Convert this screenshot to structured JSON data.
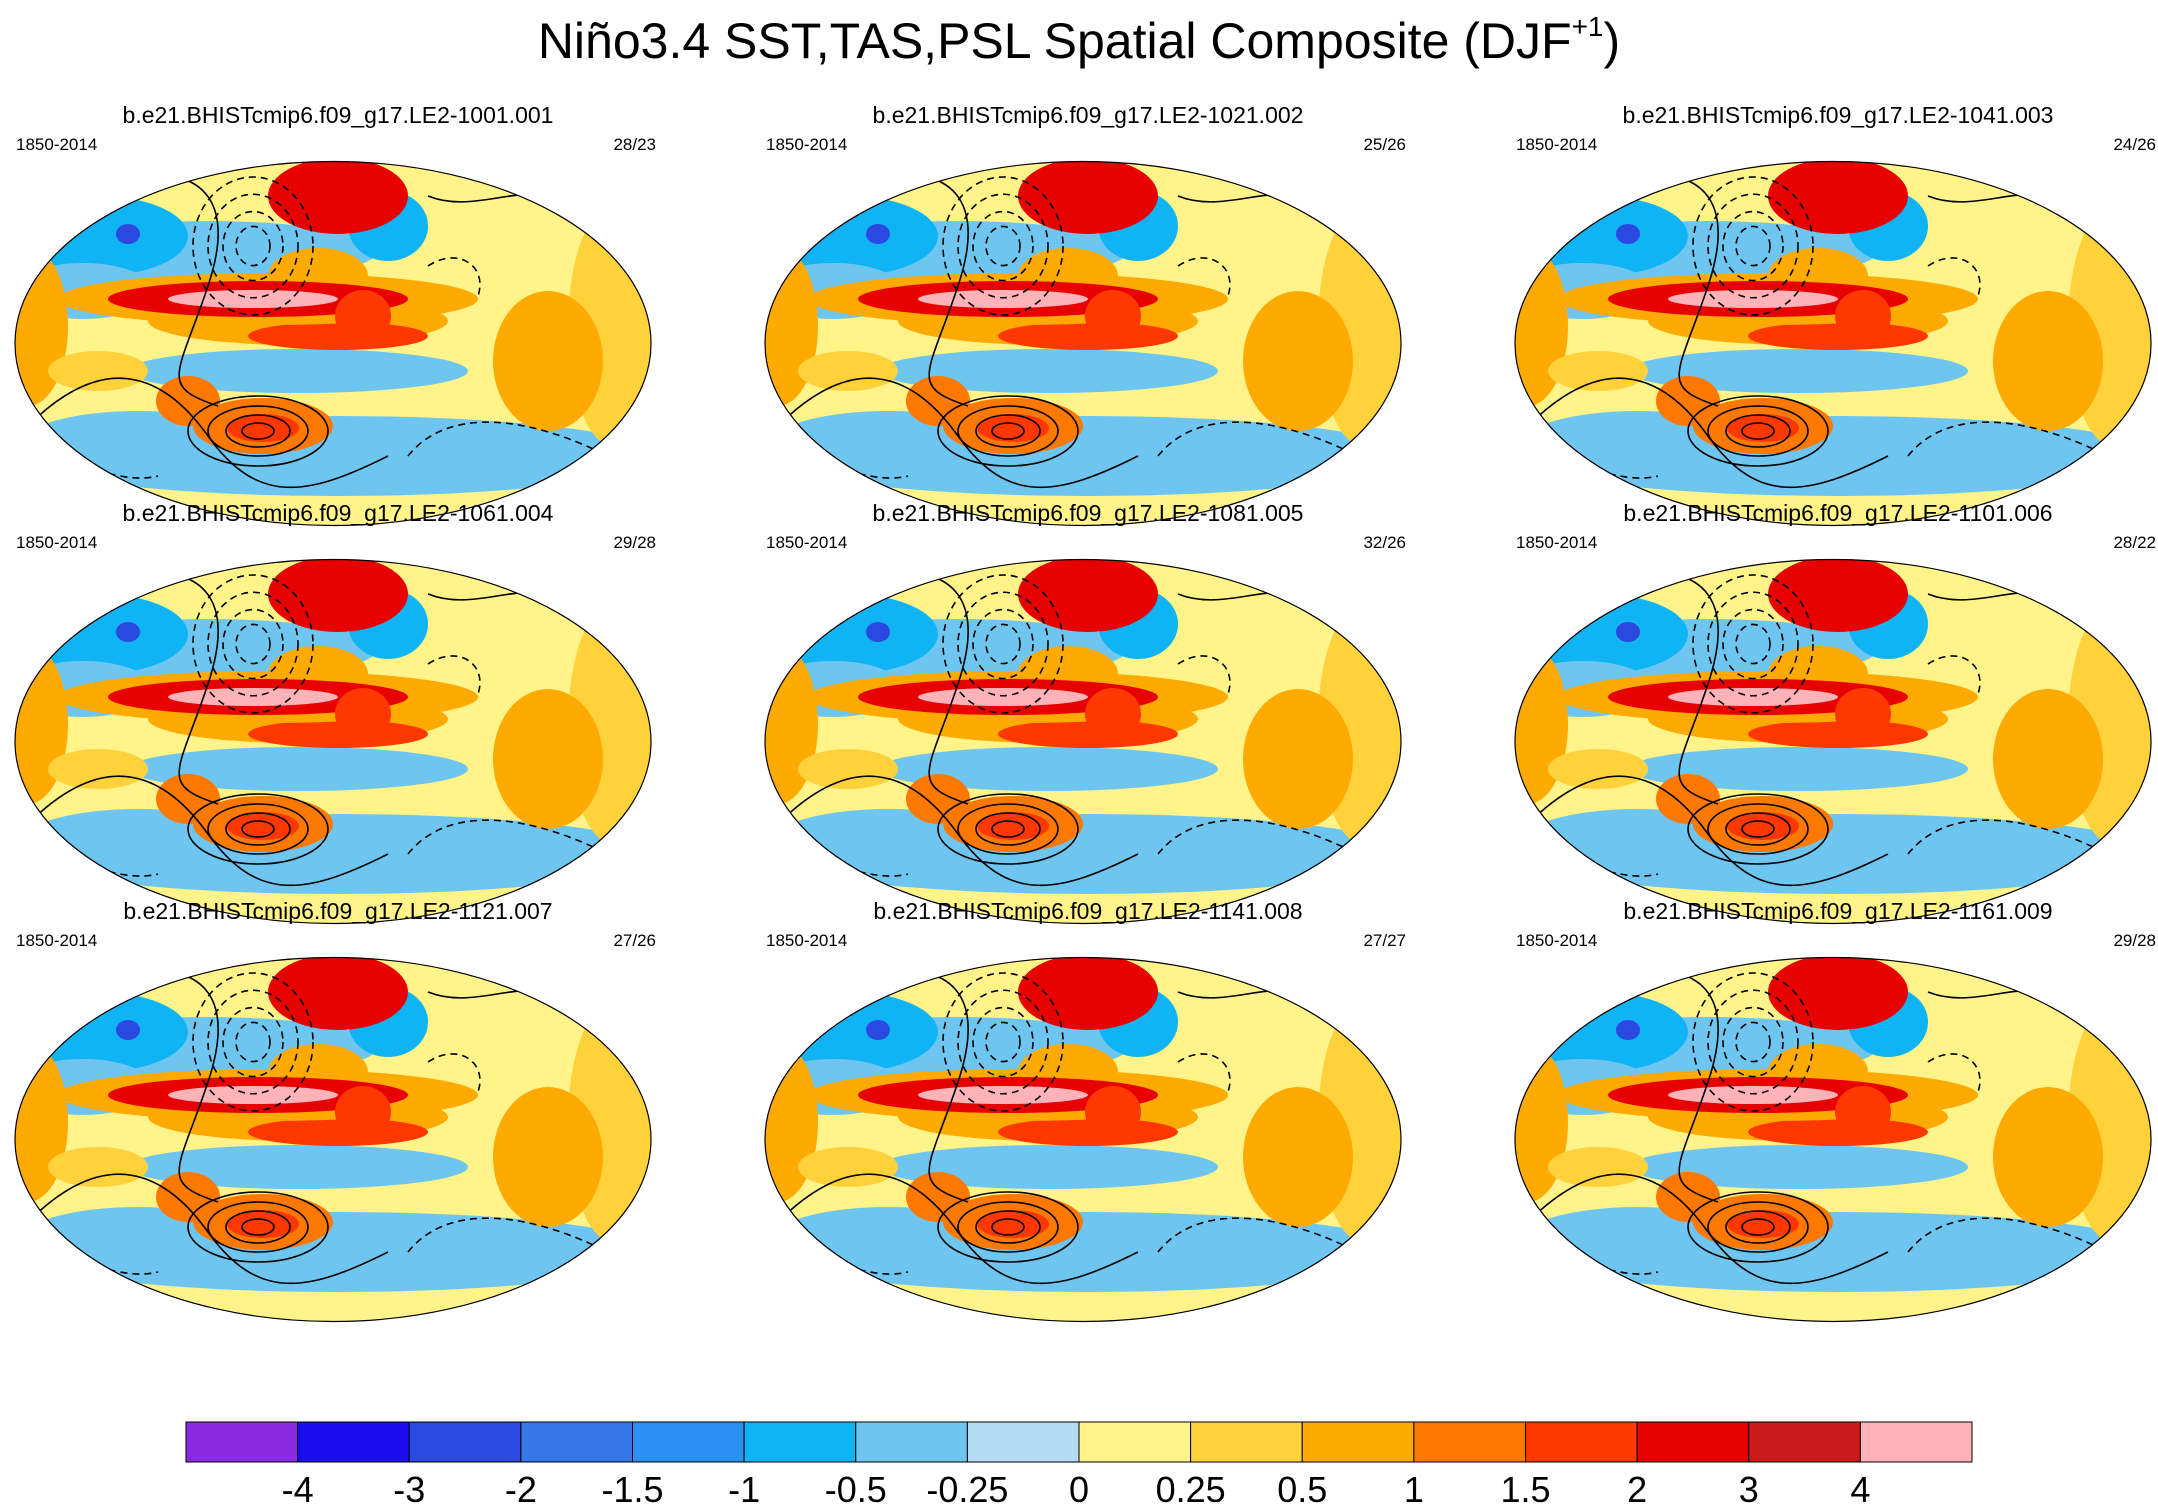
{
  "figure": {
    "title": "Niño3.4 SST,TAS,PSL Spatial Composite (DJF",
    "title_sup": "+1",
    "title_close": ")"
  },
  "chart_data": {
    "type": "heatmap",
    "description_variables": [
      "SST",
      "TAS",
      "PSL"
    ],
    "panels": [
      {
        "title": "b.e21.BHISTcmip6.f09_g17.LE2-1001.001",
        "period": "1850-2014",
        "count": "28/23"
      },
      {
        "title": "b.e21.BHISTcmip6.f09_g17.LE2-1021.002",
        "period": "1850-2014",
        "count": "25/26"
      },
      {
        "title": "b.e21.BHISTcmip6.f09_g17.LE2-1041.003",
        "period": "1850-2014",
        "count": "24/26"
      },
      {
        "title": "b.e21.BHISTcmip6.f09_g17.LE2-1061.004",
        "period": "1850-2014",
        "count": "29/28"
      },
      {
        "title": "b.e21.BHISTcmip6.f09_g17.LE2-1081.005",
        "period": "1850-2014",
        "count": "32/26"
      },
      {
        "title": "b.e21.BHISTcmip6.f09_g17.LE2-1101.006",
        "period": "1850-2014",
        "count": "28/22"
      },
      {
        "title": "b.e21.BHISTcmip6.f09_g17.LE2-1121.007",
        "period": "1850-2014",
        "count": "27/26"
      },
      {
        "title": "b.e21.BHISTcmip6.f09_g17.LE2-1141.008",
        "period": "1850-2014",
        "count": "27/27"
      },
      {
        "title": "b.e21.BHISTcmip6.f09_g17.LE2-1161.009",
        "period": "1850-2014",
        "count": "29/28"
      }
    ],
    "colorbar": {
      "levels": [
        "-4",
        "-3",
        "-2",
        "-1.5",
        "-1",
        "-0.5",
        "-0.25",
        "0",
        "0.25",
        "0.5",
        "1",
        "1.5",
        "2",
        "3",
        "4"
      ],
      "colors": [
        "#8a2be2",
        "#1a0df0",
        "#2b48e0",
        "#3478ea",
        "#2a90f2",
        "#10b4f4",
        "#6ec6f0",
        "#b4dcf2",
        "#fff38a",
        "#ffd23c",
        "#ffaa00",
        "#ff7800",
        "#ff3700",
        "#e80000",
        "#cc1a1a",
        "#ffb3b8"
      ]
    }
  }
}
